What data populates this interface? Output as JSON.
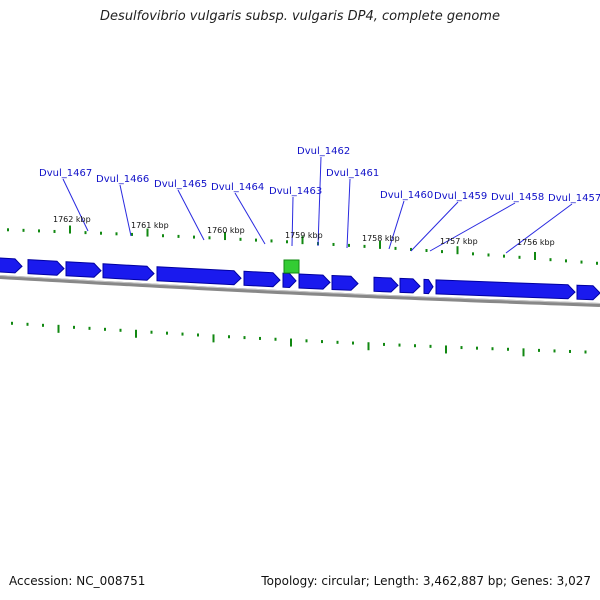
{
  "title": "Desulfovibrio vulgaris subsp. vulgaris DP4, complete genome",
  "accession_label": "Accession: NC_008751",
  "summary_label": "Topology: circular; Length: 3,462,887 bp; Genes: 3,027",
  "colors": {
    "gene_fill": "#1a1aee",
    "gene_edge": "#0000a0",
    "highlight_fill": "#33cc33",
    "highlight_edge": "#118811",
    "backbone": "#888888",
    "tick": "#118811",
    "callout": "#2a2ae0"
  },
  "scale_labels": [
    "1762 kbp",
    "1761 kbp",
    "1760 kbp",
    "1759 kbp",
    "1758 kbp",
    "1757 kbp",
    "1756 kbp"
  ],
  "gene_labels": [
    "Dvul_1467",
    "Dvul_1466",
    "Dvul_1465",
    "Dvul_1464",
    "Dvul_1463",
    "Dvul_1462",
    "Dvul_1461",
    "Dvul_1460",
    "Dvul_1459",
    "Dvul_1458",
    "Dvul_1457"
  ]
}
